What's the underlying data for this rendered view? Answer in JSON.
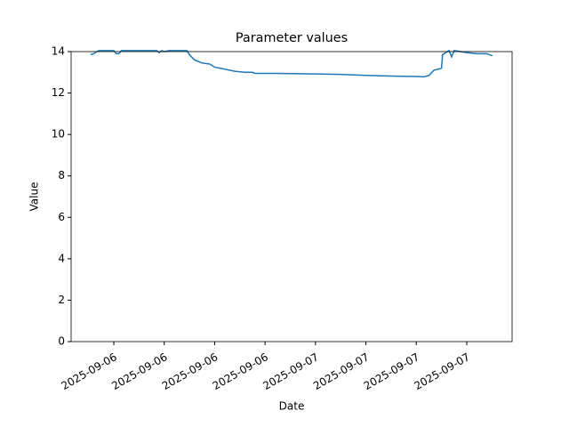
{
  "chart_data": {
    "type": "line",
    "title": "Parameter values",
    "x_label": "Date",
    "y_label": "Value",
    "xlim": [
      0.153,
      8.9
    ],
    "ylim": [
      0,
      14
    ],
    "xticks": [
      {
        "value": 1,
        "label": "2025-09-06"
      },
      {
        "value": 2,
        "label": "2025-09-06"
      },
      {
        "value": 3,
        "label": "2025-09-06"
      },
      {
        "value": 4,
        "label": "2025-09-06"
      },
      {
        "value": 5,
        "label": "2025-09-07"
      },
      {
        "value": 6,
        "label": "2025-09-07"
      },
      {
        "value": 7,
        "label": "2025-09-07"
      },
      {
        "value": 8,
        "label": "2025-09-07"
      }
    ],
    "yticks": [
      0,
      2,
      4,
      6,
      8,
      10,
      12,
      14
    ],
    "series": [
      {
        "color": "#1f77b4",
        "x": [
          0.54,
          0.6,
          0.7,
          1.0,
          1.05,
          1.1,
          1.15,
          1.5,
          1.85,
          1.9,
          1.95,
          2.0,
          2.1,
          2.45,
          2.5,
          2.6,
          2.75,
          2.9,
          3.0,
          3.2,
          3.4,
          3.6,
          3.75,
          3.8,
          4.2,
          5.0,
          5.5,
          6.0,
          6.5,
          7.0,
          7.15,
          7.25,
          7.35,
          7.5,
          7.52,
          7.65,
          7.7,
          7.75,
          8.0,
          8.2,
          8.4,
          8.51
        ],
        "values": [
          13.85,
          13.9,
          14.05,
          14.05,
          13.9,
          13.9,
          14.05,
          14.05,
          14.05,
          13.95,
          14.05,
          14.0,
          14.05,
          14.05,
          13.85,
          13.6,
          13.45,
          13.4,
          13.25,
          13.15,
          13.05,
          13.0,
          13.0,
          12.95,
          12.95,
          12.92,
          12.9,
          12.85,
          12.82,
          12.8,
          12.78,
          12.85,
          13.1,
          13.2,
          13.85,
          14.05,
          13.75,
          14.05,
          13.95,
          13.9,
          13.9,
          13.8
        ]
      }
    ]
  }
}
